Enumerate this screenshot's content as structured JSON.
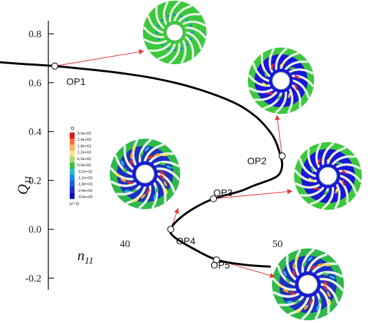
{
  "chart_data": {
    "type": "line",
    "xlabel": "n",
    "xlabel_sub": "11",
    "ylabel": "Q",
    "ylabel_sub": "11",
    "xlim": [
      30.5,
      59
    ],
    "ylim": [
      -0.23,
      0.86
    ],
    "x_ticks": [
      40,
      50
    ],
    "x_tick_labels": [
      "40",
      "50"
    ],
    "y_ticks": [
      -0.2,
      0.0,
      0.2,
      0.4,
      0.6,
      0.8
    ],
    "y_tick_labels": [
      "-0.2",
      "0.0",
      "0.2",
      "0.4",
      "0.6",
      "0.8"
    ],
    "grid": false,
    "series": [
      {
        "values": [
          [
            30.5,
            0.69
          ],
          [
            33,
            0.678
          ],
          [
            35.4,
            0.668
          ],
          [
            38,
            0.652
          ],
          [
            40,
            0.637
          ],
          [
            42,
            0.617
          ],
          [
            44,
            0.588
          ],
          [
            46,
            0.548
          ],
          [
            47.5,
            0.507
          ],
          [
            48.6,
            0.46
          ],
          [
            49.3,
            0.415
          ],
          [
            49.8,
            0.37
          ],
          [
            50.2,
            0.3
          ],
          [
            50.3,
            0.26
          ],
          [
            50.1,
            0.225
          ],
          [
            49.6,
            0.205
          ],
          [
            48.5,
            0.18
          ],
          [
            47.5,
            0.155
          ],
          [
            45.8,
            0.125
          ],
          [
            44.5,
            0.085
          ],
          [
            43.5,
            0.04
          ],
          [
            43,
            0.0
          ],
          [
            43.2,
            -0.03
          ],
          [
            44.5,
            -0.08
          ],
          [
            46,
            -0.125
          ],
          [
            47.8,
            -0.145
          ],
          [
            49.5,
            -0.153
          ]
        ]
      }
    ],
    "operating_points": [
      {
        "label": "OP1",
        "n11": 35.4,
        "q11": 0.668
      },
      {
        "label": "OP2",
        "n11": 50.3,
        "q11": 0.3
      },
      {
        "label": "OP3",
        "n11": 45.8,
        "q11": 0.125
      },
      {
        "label": "OP4",
        "n11": 43.0,
        "q11": 0.0
      },
      {
        "label": "OP5",
        "n11": 46.0,
        "q11": -0.125
      }
    ],
    "colorbar": {
      "unit": "[s^-2]",
      "tick_labels": [
        "3.0e+03",
        "2.4e+03",
        "1.8e+03",
        "1.2e+03",
        "6.0e+02",
        "0.0e+00",
        "-6.0e+02",
        "-1.2e+03",
        "-1.8e+03",
        "-2.4e+03",
        "-3.0e+03"
      ],
      "colors": [
        "#d7191c",
        "#f46d43",
        "#fdae61",
        "#fee08b",
        "#a6d96a",
        "#3cc13c",
        "#2bbcd9",
        "#1e88e5",
        "#1f5fd6",
        "#1a2fd0",
        "#0b0bb0"
      ]
    },
    "colors": {
      "curve": "#000000",
      "arrow": "#e04040",
      "wheel_blue": "#1b17d6",
      "wheel_green": "#3cc83c",
      "blade": "#e8f3e8",
      "hub": "#ffffff"
    }
  }
}
